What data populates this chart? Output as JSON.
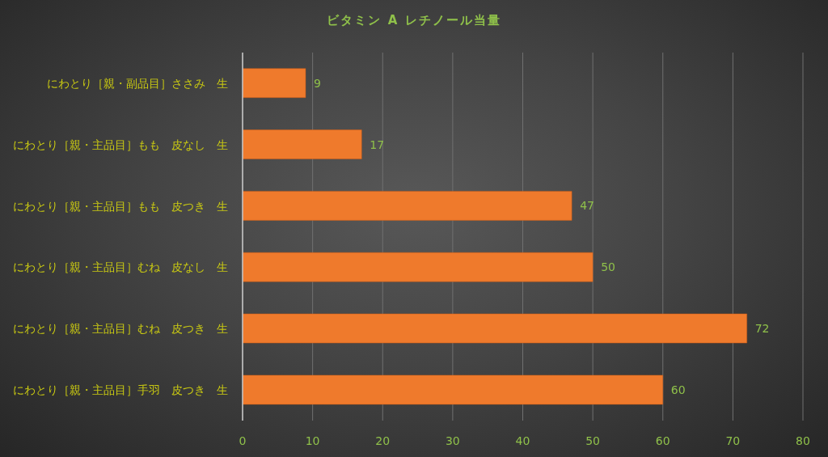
{
  "chart_data": {
    "type": "bar",
    "orientation": "horizontal",
    "title": "ビタミン A レチノール当量",
    "categories": [
      "にわとり［親・副品目］ささみ　生",
      "にわとり［親・主品目］もも　皮なし　生",
      "にわとり［親・主品目］もも　皮つき　生",
      "にわとり［親・主品目］むね　皮なし　生",
      "にわとり［親・主品目］むね　皮つき　生",
      "にわとり［親・主品目］手羽　皮つき　生"
    ],
    "values": [
      9,
      17,
      47,
      50,
      72,
      60
    ],
    "color": "#ef7a2c",
    "xlim": [
      0,
      80
    ],
    "xticks": [
      0,
      10,
      20,
      30,
      40,
      50,
      60,
      70,
      80
    ],
    "grid": "x",
    "data_labels": true
  }
}
